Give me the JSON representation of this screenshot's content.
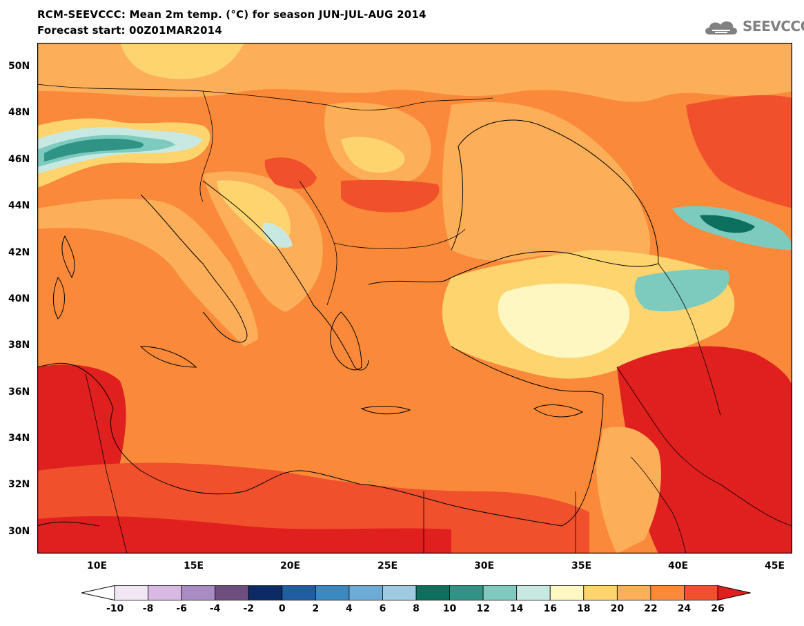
{
  "header": {
    "title": "RCM-SEEVCCC: Mean 2m temp. (°C) for season JUN-JUL-AUG 2014",
    "subtitle": "Forecast start: 00Z01MAR2014",
    "logo_text": "SEEVCCC",
    "logo_icon": "cloud-icon"
  },
  "map": {
    "lat_labels": [
      "50N",
      "48N",
      "46N",
      "44N",
      "42N",
      "40N",
      "38N",
      "36N",
      "34N",
      "32N",
      "30N"
    ],
    "lon_labels": [
      "10E",
      "15E",
      "20E",
      "25E",
      "30E",
      "35E",
      "40E",
      "45E"
    ]
  },
  "colorbar": {
    "labels": [
      "-10",
      "-8",
      "-6",
      "-4",
      "-2",
      "0",
      "2",
      "4",
      "6",
      "8",
      "10",
      "12",
      "14",
      "16",
      "18",
      "20",
      "22",
      "24",
      "26"
    ],
    "under_color": "#ffffff",
    "over_color": "#e0201f",
    "colors": [
      "#f1e7f4",
      "#d9b8e4",
      "#a98cc4",
      "#6e4e7e",
      "#0c2a66",
      "#1f5ea2",
      "#3a89c1",
      "#6cabd6",
      "#9fcbe2",
      "#0d6f5e",
      "#2f9486",
      "#7ccbbe",
      "#c7e9e2",
      "#fef7c2",
      "#fed46e",
      "#fcae58",
      "#fa8a3a",
      "#f0502c"
    ]
  }
}
